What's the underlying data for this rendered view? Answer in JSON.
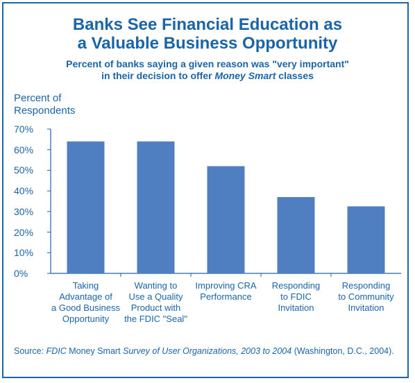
{
  "chart_data": {
    "type": "bar",
    "title_line1": "Banks See Financial Education as",
    "title_line2": "a Valuable Business Opportunity",
    "subtitle_line1": "Percent of banks saying a given reason was \"very important\"",
    "subtitle_line2_pre": "in their decision to offer ",
    "subtitle_line2_em": "Money Smart",
    "subtitle_line2_post": " classes",
    "ylabel_line1": "Percent of",
    "ylabel_line2": "Respondents",
    "ylim": [
      0,
      70
    ],
    "yticks": [
      "0%",
      "10%",
      "20%",
      "30%",
      "40%",
      "50%",
      "60%",
      "70%"
    ],
    "categories": [
      [
        "Taking",
        "Advantage of",
        "a Good Business",
        "Opportunity"
      ],
      [
        "Wanting to",
        "Use a Quality",
        "Product with",
        "the FDIC \"Seal\""
      ],
      [
        "Improving CRA",
        "Performance"
      ],
      [
        "Responding",
        "to FDIC",
        "Invitation"
      ],
      [
        "Responding",
        "to Community",
        "Invitation"
      ]
    ],
    "values": [
      64,
      64,
      52,
      37,
      32.5
    ],
    "bar_color": "#4f7fc0",
    "text_color": "#1a64a8",
    "grid": false
  },
  "source": {
    "label": "Source: ",
    "org": "FDIC",
    "plain1": " Money Smart ",
    "title": "Survey of User Organizations, 2003 to 2004",
    "plain2": " (Washington, D.C., 2004)."
  }
}
